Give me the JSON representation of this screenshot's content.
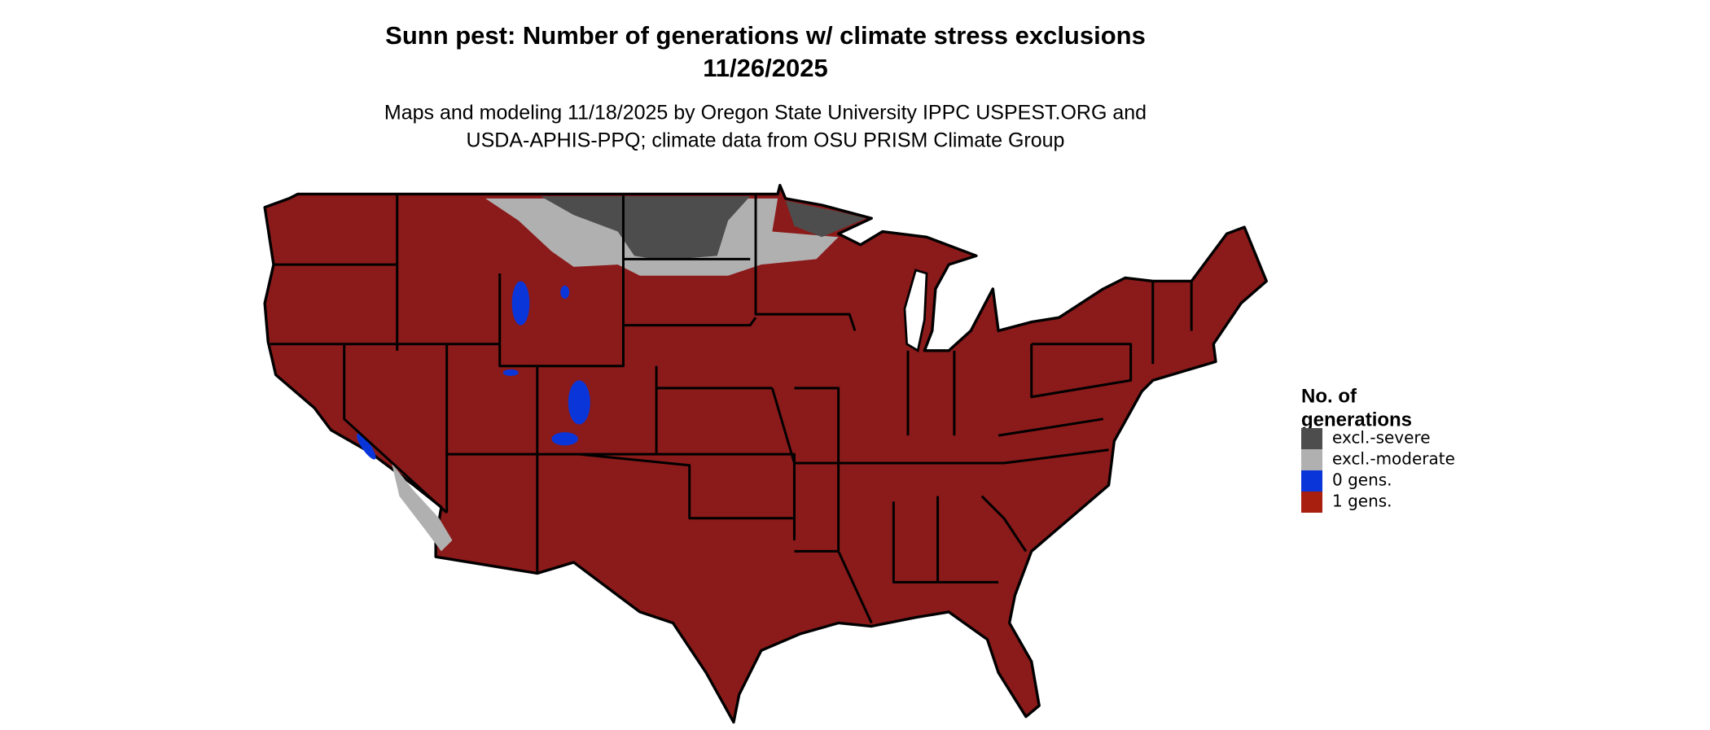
{
  "title": [
    "Sunn pest: Number of generations w/ climate stress exclusions",
    "11/26/2025"
  ],
  "subtitle": [
    "Maps and modeling 11/18/2025 by Oregon State University IPPC USPEST.ORG and",
    "USDA-APHIS-PPQ; climate data from OSU PRISM Climate Group"
  ],
  "legend": {
    "title": [
      "No. of",
      "generations"
    ],
    "items": [
      {
        "label": "excl.-severe",
        "color": "#4d4d4d"
      },
      {
        "label": "excl.-moderate",
        "color": "#b0b0b0"
      },
      {
        "label": "0 gens.",
        "color": "#0a35d8"
      },
      {
        "label": "1 gens.",
        "color": "#a81f10"
      }
    ]
  }
}
